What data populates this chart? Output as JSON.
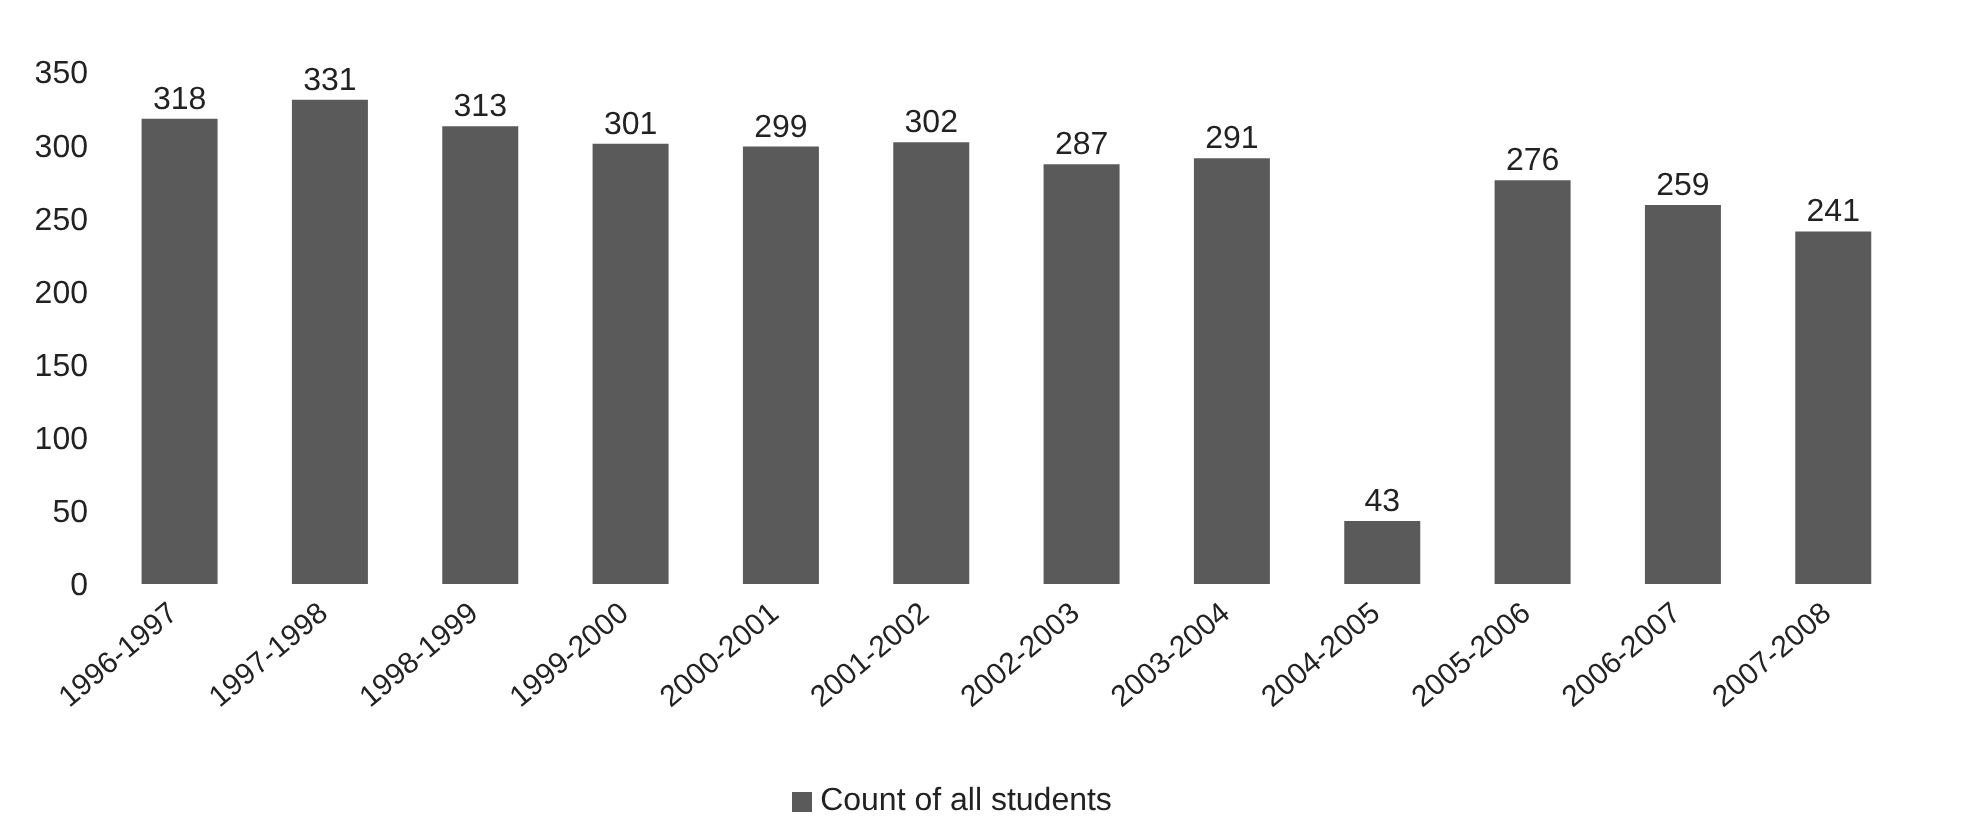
{
  "chart_data": {
    "type": "bar",
    "categories": [
      "1996-1997",
      "1997-1998",
      "1998-1999",
      "1999-2000",
      "2000-2001",
      "2001-2002",
      "2002-2003",
      "2003-2004",
      "2004-2005",
      "2005-2006",
      "2006-2007",
      "2007-2008"
    ],
    "series": [
      {
        "name": "Count of all students",
        "color": "#5a5a5a",
        "values": [
          318,
          331,
          313,
          301,
          299,
          302,
          287,
          291,
          43,
          276,
          259,
          241
        ]
      }
    ],
    "ylim": [
      0,
      350
    ],
    "yticks": [
      0,
      50,
      100,
      150,
      200,
      250,
      300,
      350
    ],
    "grid": false,
    "legend": "bottom",
    "data_labels": true
  }
}
